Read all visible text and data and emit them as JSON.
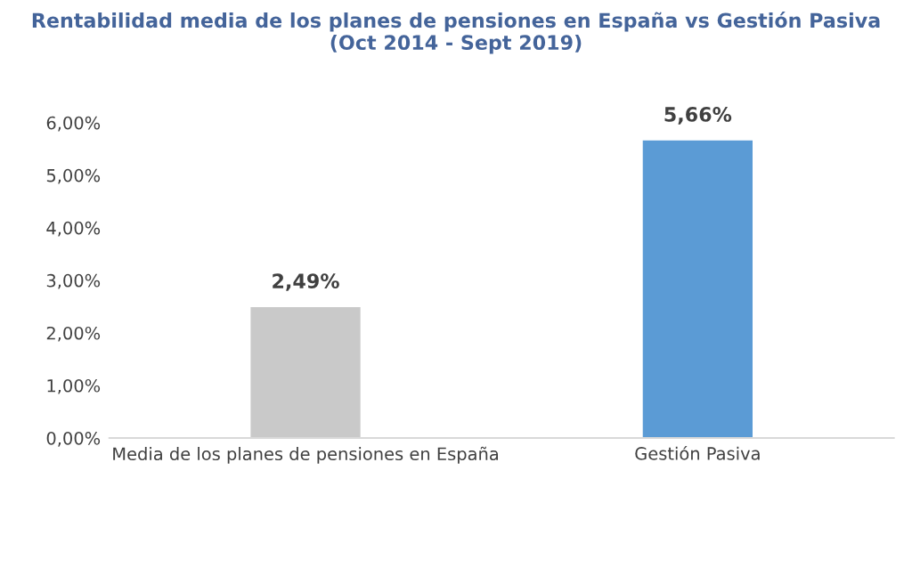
{
  "chart_data": {
    "type": "bar",
    "title": "Rentabilidad media de los planes de pensiones en España vs Gestión Pasiva\n(Oct 2014 - Sept 2019)",
    "categories": [
      "Media de los planes de pensiones en España",
      "Gestión Pasiva"
    ],
    "values": [
      2.49,
      5.66
    ],
    "colors": [
      "#c9c9c9",
      "#5b9bd5"
    ],
    "value_labels": [
      "2,49%",
      "5,66%"
    ],
    "ylim": [
      0,
      6
    ],
    "yticks": [
      {
        "value": 0,
        "label": "0,00%"
      },
      {
        "value": 1,
        "label": "1,00%"
      },
      {
        "value": 2,
        "label": "2,00%"
      },
      {
        "value": 3,
        "label": "3,00%"
      },
      {
        "value": 4,
        "label": "4,00%"
      },
      {
        "value": 5,
        "label": "5,00%"
      },
      {
        "value": 6,
        "label": "6,00%"
      }
    ],
    "grid": false,
    "legend": false
  }
}
